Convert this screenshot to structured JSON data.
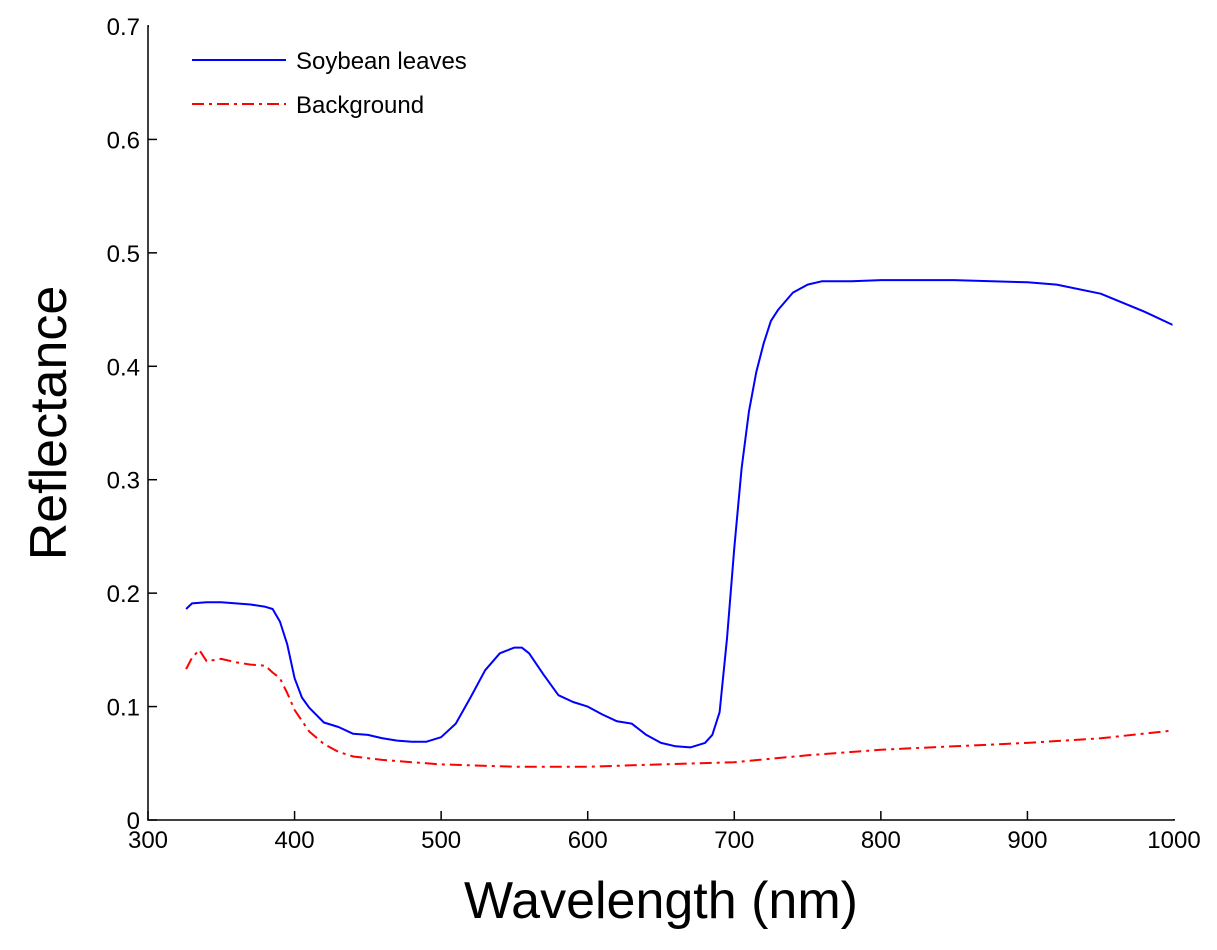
{
  "chart_data": {
    "type": "line",
    "title": "",
    "xlabel": "Wavelength (nm)",
    "ylabel": "Reflectance",
    "xlim": [
      300,
      1000
    ],
    "ylim": [
      0,
      0.7
    ],
    "xticks": [
      300,
      400,
      500,
      600,
      700,
      800,
      900,
      1000
    ],
    "yticks": [
      0,
      0.1,
      0.2,
      0.3,
      0.4,
      0.5,
      0.6,
      0.7
    ],
    "xtick_labels": [
      "300",
      "400",
      "500",
      "600",
      "700",
      "800",
      "900",
      "1000"
    ],
    "ytick_labels": [
      "0",
      "0.1",
      "0.2",
      "0.3",
      "0.4",
      "0.5",
      "0.6",
      "0.7"
    ],
    "grid": false,
    "legend_position": "top-left",
    "series": [
      {
        "name": "Soybean leaves",
        "color": "#0000ff",
        "style": "solid",
        "x": [
          326,
          330,
          340,
          350,
          360,
          370,
          380,
          385,
          390,
          395,
          400,
          405,
          410,
          420,
          430,
          440,
          450,
          460,
          470,
          480,
          490,
          500,
          510,
          520,
          530,
          540,
          550,
          555,
          560,
          570,
          580,
          590,
          600,
          610,
          620,
          630,
          640,
          650,
          660,
          670,
          680,
          685,
          690,
          695,
          700,
          705,
          710,
          715,
          720,
          725,
          730,
          740,
          750,
          760,
          770,
          780,
          800,
          850,
          900,
          920,
          950,
          980,
          1000
        ],
        "y": [
          0.186,
          0.191,
          0.192,
          0.192,
          0.191,
          0.19,
          0.188,
          0.186,
          0.175,
          0.155,
          0.125,
          0.108,
          0.099,
          0.086,
          0.082,
          0.076,
          0.075,
          0.072,
          0.07,
          0.069,
          0.069,
          0.073,
          0.085,
          0.108,
          0.132,
          0.147,
          0.152,
          0.152,
          0.147,
          0.128,
          0.11,
          0.104,
          0.1,
          0.093,
          0.087,
          0.085,
          0.075,
          0.068,
          0.065,
          0.064,
          0.068,
          0.075,
          0.095,
          0.16,
          0.24,
          0.31,
          0.36,
          0.395,
          0.42,
          0.44,
          0.45,
          0.465,
          0.472,
          0.475,
          0.475,
          0.475,
          0.476,
          0.476,
          0.474,
          0.472,
          0.464,
          0.448,
          0.436
        ]
      },
      {
        "name": "Background",
        "color": "#ff0000",
        "style": "dashdot",
        "x": [
          326,
          330,
          335,
          340,
          350,
          360,
          370,
          380,
          385,
          390,
          395,
          400,
          410,
          420,
          430,
          440,
          460,
          480,
          500,
          550,
          600,
          650,
          700,
          750,
          800,
          850,
          900,
          950,
          1000
        ],
        "y": [
          0.133,
          0.143,
          0.15,
          0.14,
          0.142,
          0.139,
          0.137,
          0.136,
          0.13,
          0.125,
          0.112,
          0.097,
          0.078,
          0.067,
          0.06,
          0.056,
          0.053,
          0.051,
          0.049,
          0.047,
          0.047,
          0.049,
          0.051,
          0.057,
          0.062,
          0.065,
          0.068,
          0.072,
          0.079
        ]
      }
    ]
  }
}
